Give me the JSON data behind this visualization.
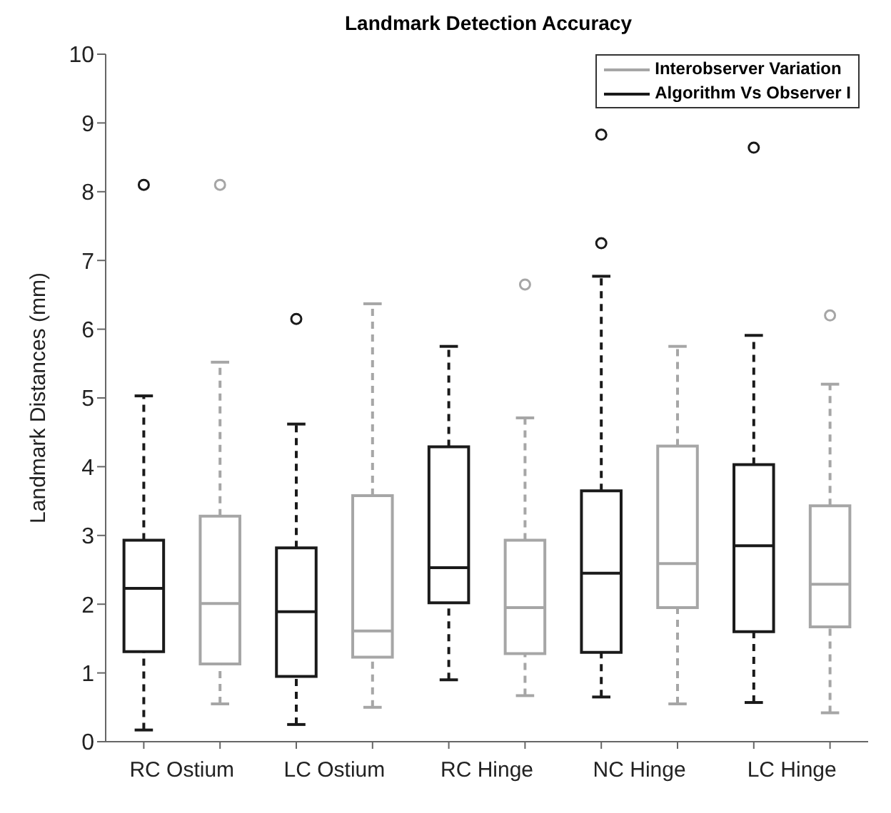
{
  "chart_data": {
    "type": "box",
    "title": "Landmark Detection Accuracy",
    "ylabel": "Landmark Distances (mm)",
    "categories": [
      "RC Ostium",
      "LC Ostium",
      "RC Hinge",
      "NC Hinge",
      "LC Hinge"
    ],
    "ylim": [
      0,
      10
    ],
    "yticks": [
      0,
      1,
      2,
      3,
      4,
      5,
      6,
      7,
      8,
      9,
      10
    ],
    "legend": "top right",
    "line_style": "dashed",
    "marker": "circle",
    "series": [
      {
        "name": "Interobserver Variation",
        "color": "#a6a6a6",
        "boxes": [
          {
            "low": 0.55,
            "q1": 1.13,
            "median": 2.01,
            "q3": 3.28,
            "high": 5.52,
            "outliers": [
              8.1
            ]
          },
          {
            "low": 0.5,
            "q1": 1.23,
            "median": 1.61,
            "q3": 3.58,
            "high": 6.37
          },
          {
            "low": 0.67,
            "q1": 1.28,
            "median": 1.95,
            "q3": 2.93,
            "high": 4.71,
            "outliers": [
              6.65
            ]
          },
          {
            "low": 0.55,
            "q1": 1.95,
            "median": 2.59,
            "q3": 4.3,
            "high": 5.75
          },
          {
            "low": 0.42,
            "q1": 1.67,
            "median": 2.29,
            "q3": 3.43,
            "high": 5.2,
            "outliers": [
              6.2
            ]
          }
        ]
      },
      {
        "name": "Algorithm Vs Observer I",
        "color": "#1a1a1a",
        "boxes": [
          {
            "low": 0.17,
            "q1": 1.31,
            "median": 2.23,
            "q3": 2.93,
            "high": 5.03,
            "outliers": [
              8.1
            ]
          },
          {
            "low": 0.25,
            "q1": 0.95,
            "median": 1.89,
            "q3": 2.82,
            "high": 4.62,
            "outliers": [
              6.15
            ]
          },
          {
            "low": 0.9,
            "q1": 2.02,
            "median": 2.53,
            "q3": 4.29,
            "high": 5.75
          },
          {
            "low": 0.65,
            "q1": 1.3,
            "median": 2.45,
            "q3": 3.65,
            "high": 6.77,
            "outliers": [
              7.25,
              8.83
            ]
          },
          {
            "low": 0.57,
            "q1": 1.6,
            "median": 2.85,
            "q3": 4.03,
            "high": 5.91,
            "outliers": [
              8.64
            ]
          }
        ]
      }
    ]
  }
}
